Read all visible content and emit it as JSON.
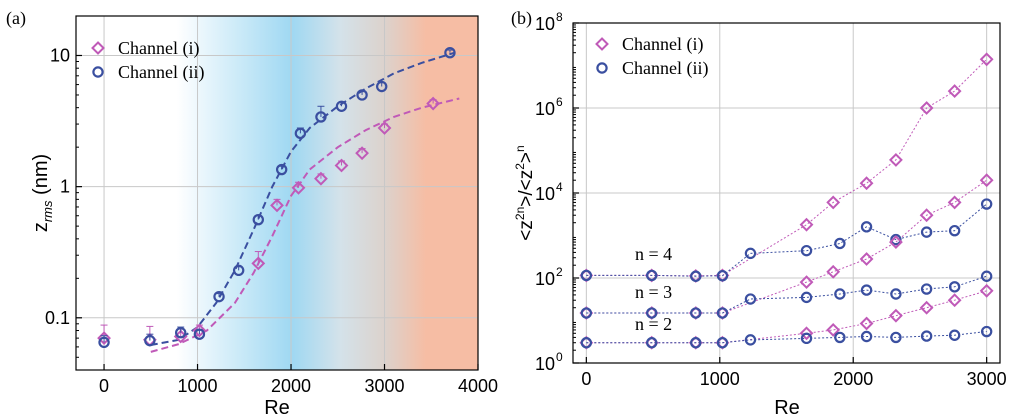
{
  "colors": {
    "channel_i": "#c05ab8",
    "channel_ii": "#3a4fa0",
    "band_blue": "#9fd8f2",
    "band_salmon": "#f6bda4",
    "grid": "#c8c8c8"
  },
  "chart_data": [
    {
      "panel": "(a)",
      "type": "scatter",
      "xlabel": "Re",
      "ylabel": "z_rms (nm)",
      "ylabel_main": "z",
      "ylabel_sub": "rms",
      "ylabel_unit": " (nm)",
      "xlim": [
        -300,
        4000
      ],
      "ylim": [
        0.04,
        20
      ],
      "yscale": "log",
      "xticks": [
        0,
        1000,
        2000,
        3000,
        4000
      ],
      "xtick_labels": [
        "0",
        "1000",
        "2000",
        "3000",
        "4000"
      ],
      "yticks": [
        0.1,
        1,
        10
      ],
      "ytick_labels": [
        "0.1",
        "1",
        "10"
      ],
      "grid": true,
      "legend": "top-left",
      "series": [
        {
          "name": "Channel (i)",
          "marker": "diamond",
          "x": [
            0,
            490,
            820,
            1020,
            1650,
            1850,
            2080,
            2320,
            2540,
            2760,
            3000,
            3520
          ],
          "y": [
            0.07,
            0.068,
            0.072,
            0.08,
            0.26,
            0.72,
            0.98,
            1.15,
            1.45,
            1.8,
            2.8,
            4.3
          ],
          "err": [
            0.018,
            0.018,
            0.01,
            0.008,
            0.06,
            0.08,
            0.1,
            0.1,
            0.12,
            0.15,
            0.2,
            0.3
          ]
        },
        {
          "name": "Channel (ii)",
          "marker": "circle",
          "x": [
            0,
            490,
            820,
            1020,
            1230,
            1440,
            1650,
            1900,
            2100,
            2320,
            2540,
            2760,
            2970,
            3700
          ],
          "y": [
            0.065,
            0.067,
            0.077,
            0.075,
            0.145,
            0.23,
            0.56,
            1.35,
            2.55,
            3.4,
            4.1,
            5.0,
            5.8,
            10.5
          ],
          "err": [
            0.008,
            0.008,
            0.008,
            0.006,
            0.008,
            0.015,
            0.04,
            0.08,
            0.25,
            0.7,
            0.3,
            0.3,
            0.4,
            0.5
          ]
        }
      ],
      "fits": [
        {
          "series": "Channel (i)",
          "x": [
            500,
            800,
            1100,
            1400,
            1600,
            1800,
            2000,
            2200,
            2500,
            2800,
            3100,
            3400,
            3800
          ],
          "y": [
            0.055,
            0.063,
            0.08,
            0.13,
            0.22,
            0.42,
            0.85,
            1.35,
            2.0,
            2.7,
            3.4,
            4.0,
            4.7
          ]
        },
        {
          "series": "Channel (ii)",
          "x": [
            500,
            800,
            1000,
            1200,
            1400,
            1600,
            1800,
            2000,
            2200,
            2500,
            2800,
            3100,
            3400,
            3750
          ],
          "y": [
            0.062,
            0.068,
            0.085,
            0.13,
            0.23,
            0.47,
            1.0,
            1.85,
            2.8,
            4.1,
            5.6,
            7.3,
            8.8,
            10.5
          ]
        }
      ]
    },
    {
      "panel": "(b)",
      "type": "scatter",
      "xlabel": "Re",
      "ylabel": "<z^2n>/<z^2>^n",
      "xlim": [
        -100,
        3100
      ],
      "ylim": [
        1,
        100000000
      ],
      "yscale": "log",
      "xticks": [
        0,
        1000,
        2000,
        3000
      ],
      "xtick_labels": [
        "0",
        "1000",
        "2000",
        "3000"
      ],
      "ytick_exponents": [
        0,
        2,
        4,
        6,
        8
      ],
      "grid": true,
      "legend": "top-left",
      "annotations": [
        "n = 4",
        "n = 3",
        "n = 2"
      ],
      "series": [
        {
          "name": "Channel (i)",
          "n": 4,
          "marker": "diamond",
          "x": [
            0,
            490,
            820,
            1020,
            1650,
            1850,
            2100,
            2320,
            2550,
            2760,
            3000
          ],
          "y": [
            115,
            115,
            112,
            115,
            1800,
            6000,
            17000,
            60000,
            1000000,
            2500000,
            14000000
          ]
        },
        {
          "name": "Channel (ii)",
          "n": 4,
          "marker": "circle",
          "x": [
            0,
            490,
            820,
            1020,
            1230,
            1650,
            1900,
            2100,
            2320,
            2550,
            2760,
            3000
          ],
          "y": [
            115,
            115,
            110,
            113,
            380,
            440,
            650,
            1600,
            800,
            1200,
            1300,
            5500
          ]
        },
        {
          "name": "Channel (i)",
          "n": 3,
          "marker": "diamond",
          "x": [
            0,
            490,
            820,
            1020,
            1650,
            1850,
            2100,
            2320,
            2550,
            2760,
            3000
          ],
          "y": [
            15,
            15,
            15,
            15,
            80,
            140,
            280,
            700,
            3000,
            6000,
            20000
          ]
        },
        {
          "name": "Channel (ii)",
          "n": 3,
          "marker": "circle",
          "x": [
            0,
            490,
            820,
            1020,
            1230,
            1650,
            1900,
            2100,
            2320,
            2550,
            2760,
            3000
          ],
          "y": [
            15,
            15,
            15,
            15,
            32,
            35,
            42,
            52,
            42,
            55,
            62,
            110
          ]
        },
        {
          "name": "Channel (i)",
          "n": 2,
          "marker": "diamond",
          "x": [
            0,
            490,
            820,
            1020,
            1650,
            1850,
            2100,
            2320,
            2550,
            2760,
            3000
          ],
          "y": [
            3,
            3,
            3,
            3,
            5,
            6,
            8.5,
            13,
            20,
            30,
            50
          ]
        },
        {
          "name": "Channel (ii)",
          "n": 2,
          "marker": "circle",
          "x": [
            0,
            490,
            820,
            1020,
            1230,
            1650,
            1900,
            2100,
            2320,
            2550,
            2760,
            3000
          ],
          "y": [
            3,
            3,
            3,
            3,
            3.5,
            3.8,
            4,
            4.2,
            4,
            4.3,
            4.5,
            5.5
          ]
        }
      ]
    }
  ]
}
